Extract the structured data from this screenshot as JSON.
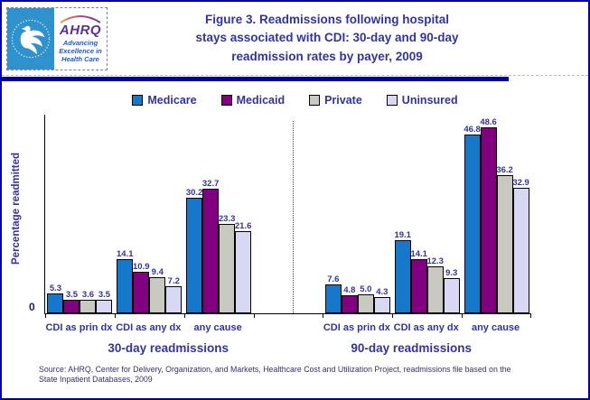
{
  "header": {
    "title_lines": [
      "Figure 3. Readmissions following hospital",
      "stays associated with CDI: 30-day and 90-day",
      "readmission rates by payer, 2009"
    ],
    "logo": {
      "acronym": "AHRQ",
      "tagline_lines": [
        "Advancing",
        "Excellence in",
        "Health Care"
      ]
    }
  },
  "chart_data": {
    "type": "bar",
    "title": "Figure 3. Readmissions following hospital stays associated with CDI: 30-day and 90-day readmission rates by payer, 2009",
    "ylabel": "Percentage readmitted",
    "y_origin_label": "0",
    "ylim": [
      0,
      52
    ],
    "grid": false,
    "legend_position": "top",
    "legend": [
      "Medicare",
      "Medicaid",
      "Private",
      "Uninsured"
    ],
    "series_colors": [
      "#1777c9",
      "#800080",
      "#c9c9c2",
      "#d8d8f4"
    ],
    "panels": [
      {
        "label": "30-day readmissions",
        "categories": [
          "CDI as prin dx",
          "CDI as any dx",
          "any cause"
        ],
        "series": [
          {
            "name": "Medicare",
            "values": [
              5.3,
              14.1,
              30.2
            ]
          },
          {
            "name": "Medicaid",
            "values": [
              3.5,
              10.9,
              32.7
            ]
          },
          {
            "name": "Private",
            "values": [
              3.6,
              9.4,
              23.3
            ]
          },
          {
            "name": "Uninsured",
            "values": [
              3.5,
              7.2,
              21.6
            ]
          }
        ]
      },
      {
        "label": "90-day readmissions",
        "categories": [
          "CDI as prin dx",
          "CDI as any dx",
          "any cause"
        ],
        "series": [
          {
            "name": "Medicare",
            "values": [
              7.6,
              19.1,
              46.8
            ]
          },
          {
            "name": "Medicaid",
            "values": [
              4.8,
              14.1,
              48.6
            ]
          },
          {
            "name": "Private",
            "values": [
              5.0,
              12.3,
              36.2
            ]
          },
          {
            "name": "Uninsured",
            "values": [
              4.3,
              9.3,
              32.9
            ]
          }
        ]
      }
    ]
  },
  "footer": {
    "source_lines": [
      "Source: AHRQ, Center for Delivery, Organization, and Markets, Healthcare Cost and Utilization Project, readmissions file based on the",
      "State Inpatient Databases, 2009"
    ]
  },
  "colors": {
    "page_border": "#0000a8",
    "header_rule": "#0000a0",
    "title_text": "#333399",
    "value_label_text": "#333399",
    "hhs_seal_blue": "#2f92cc",
    "ahrq_purple": "#5a3191",
    "tagline_blue": "#2257c9"
  }
}
